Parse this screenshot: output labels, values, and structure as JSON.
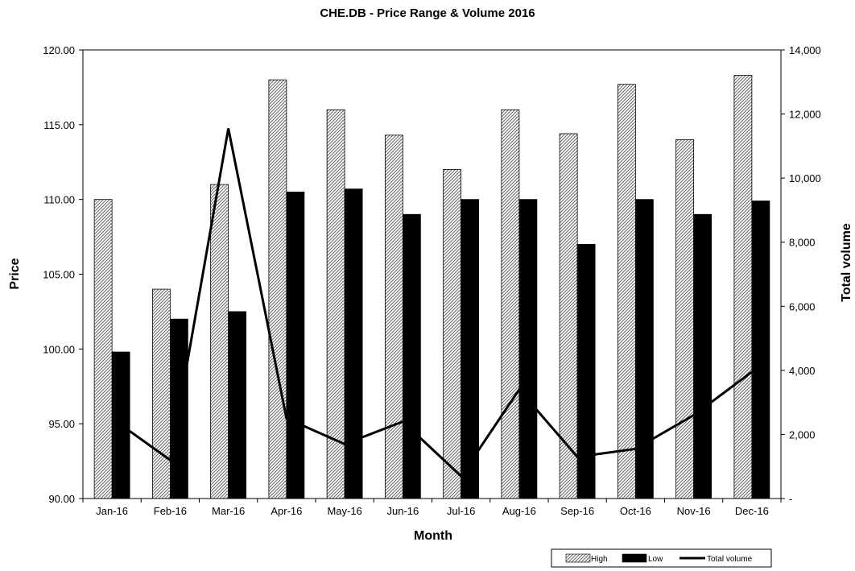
{
  "chart_data": {
    "type": "bar",
    "title": "CHE.DB - Price Range & Volume 2016",
    "xlabel": "Month",
    "ylabel": "Price",
    "y2label": "Total volume",
    "categories": [
      "Jan-16",
      "Feb-16",
      "Mar-16",
      "Apr-16",
      "May-16",
      "Jun-16",
      "Jul-16",
      "Aug-16",
      "Sep-16",
      "Oct-16",
      "Nov-16",
      "Dec-16"
    ],
    "ylim": [
      90,
      120
    ],
    "y_ticks": [
      "90.00",
      "95.00",
      "100.00",
      "105.00",
      "110.00",
      "115.00",
      "120.00"
    ],
    "y2lim": [
      0,
      14000
    ],
    "y2_ticks": [
      "-",
      "2,000",
      "4,000",
      "6,000",
      "8,000",
      "10,000",
      "12,000",
      "14,000"
    ],
    "grid": false,
    "legend_position": "bottom-right",
    "series": [
      {
        "name": "High",
        "type": "bar",
        "axis": "left",
        "fill": "hatched",
        "values": [
          110.0,
          104.0,
          111.0,
          118.0,
          116.0,
          114.3,
          112.0,
          116.0,
          114.4,
          117.7,
          114.0,
          118.3
        ]
      },
      {
        "name": "Low",
        "type": "bar",
        "axis": "left",
        "fill": "#000000",
        "values": [
          99.8,
          102.0,
          102.5,
          110.5,
          110.7,
          109.0,
          110.0,
          110.0,
          107.0,
          110.0,
          109.0,
          109.9
        ]
      },
      {
        "name": "Total volume",
        "type": "line",
        "axis": "right",
        "color": "#000000",
        "values": [
          2500,
          1200,
          11550,
          2500,
          1700,
          2400,
          700,
          3400,
          1300,
          1550,
          2600,
          3950
        ]
      }
    ]
  }
}
